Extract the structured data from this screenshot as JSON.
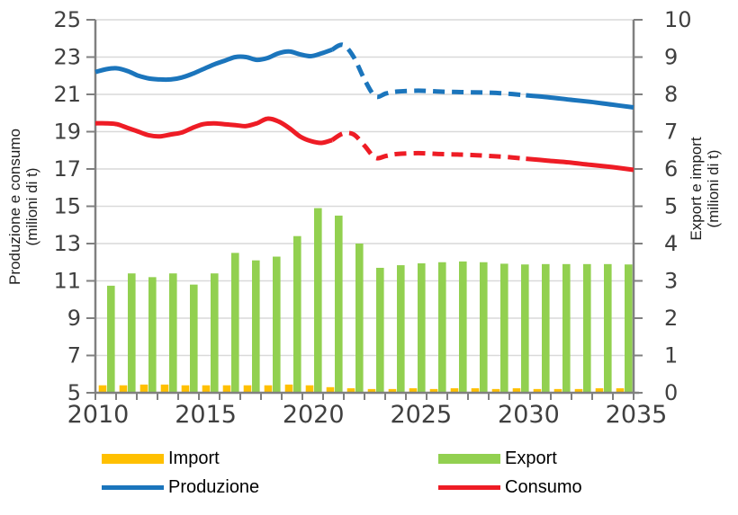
{
  "page": {
    "background": "#ffffff"
  },
  "colors": {
    "grid": "#d9d9d9",
    "axis": "#808080",
    "tick_text": "#404040",
    "title_text": "#1f1f1f",
    "import": "#FFC000",
    "export": "#92D050",
    "produzione": "#1B75BC",
    "consumo": "#EE1C25"
  },
  "legend": {
    "items": [
      {
        "label": "Import",
        "swatch": "bar",
        "color": "#FFC000"
      },
      {
        "label": "Produzione",
        "swatch": "line",
        "color": "#1B75BC"
      },
      {
        "label": "Export",
        "swatch": "bar",
        "color": "#92D050"
      },
      {
        "label": "Consumo",
        "swatch": "line",
        "color": "#EE1C25"
      }
    ]
  },
  "chart_data": {
    "type": "combo bar+line, dual axis",
    "x_years": [
      2010,
      2011,
      2012,
      2013,
      2014,
      2015,
      2016,
      2017,
      2018,
      2019,
      2020,
      2021,
      2022,
      2023,
      2024,
      2025,
      2026,
      2027,
      2028,
      2029,
      2030,
      2031,
      2032,
      2033,
      2034,
      2035
    ],
    "x_axis": {
      "tick_years": [
        2010,
        2015,
        2020,
        2025,
        2030,
        2035
      ],
      "xlim": [
        2010,
        2035
      ],
      "minor_ticks_every_year": true
    },
    "left_axis": {
      "title_line1": "Produzione e consumo",
      "title_line2": "(milioni di t)",
      "min": 5,
      "max": 25,
      "tick_labels": [
        25,
        23,
        21,
        19,
        17,
        15,
        13,
        11,
        9,
        7,
        5
      ],
      "grid": true
    },
    "right_axis": {
      "title_line1": "Export e import",
      "title_line2": "(milioni di t)",
      "min": 0,
      "max": 10,
      "tick_labels": [
        10,
        9,
        8,
        7,
        6,
        5,
        4,
        3,
        2,
        1,
        0
      ]
    },
    "bar_series": [
      {
        "name": "Import",
        "axis": "right",
        "color": "#FFC000",
        "values": [
          0.2,
          0.2,
          0.22,
          0.22,
          0.2,
          0.2,
          0.2,
          0.2,
          0.2,
          0.22,
          0.2,
          0.15,
          0.12,
          0.1,
          0.1,
          0.12,
          0.1,
          0.12,
          0.12,
          0.1,
          0.12,
          0.1,
          0.1,
          0.1,
          0.12,
          0.12
        ]
      },
      {
        "name": "Export",
        "axis": "right",
        "color": "#92D050",
        "values": [
          2.87,
          3.2,
          3.1,
          3.2,
          2.9,
          3.2,
          3.75,
          3.55,
          3.65,
          4.2,
          4.95,
          4.75,
          4.0,
          3.35,
          3.42,
          3.47,
          3.5,
          3.52,
          3.5,
          3.46,
          3.44,
          3.45,
          3.45,
          3.45,
          3.45,
          3.44
        ]
      }
    ],
    "line_series": [
      {
        "name": "Produzione",
        "axis": "left",
        "color": "#1B75BC",
        "segments": [
          {
            "from": 2010,
            "to": 2021,
            "dash": false
          },
          {
            "from": 2021,
            "to": 2030,
            "dash": true
          },
          {
            "from": 2030,
            "to": 2035,
            "dash": false
          }
        ],
        "points": [
          [
            2010,
            22.2
          ],
          [
            2010.5,
            22.35
          ],
          [
            2011,
            22.4
          ],
          [
            2011.5,
            22.25
          ],
          [
            2012,
            22.0
          ],
          [
            2012.5,
            21.85
          ],
          [
            2013,
            21.8
          ],
          [
            2013.5,
            21.8
          ],
          [
            2014,
            21.9
          ],
          [
            2014.5,
            22.1
          ],
          [
            2015,
            22.35
          ],
          [
            2015.5,
            22.6
          ],
          [
            2016,
            22.8
          ],
          [
            2016.5,
            23.0
          ],
          [
            2017,
            23.0
          ],
          [
            2017.5,
            22.85
          ],
          [
            2018,
            22.95
          ],
          [
            2018.5,
            23.2
          ],
          [
            2019,
            23.3
          ],
          [
            2019.5,
            23.15
          ],
          [
            2020,
            23.05
          ],
          [
            2020.5,
            23.2
          ],
          [
            2021,
            23.4
          ],
          [
            2021.5,
            23.65
          ],
          [
            2022,
            23.0
          ],
          [
            2022.5,
            21.8
          ],
          [
            2023,
            20.9
          ],
          [
            2023.5,
            21.05
          ],
          [
            2024,
            21.15
          ],
          [
            2025,
            21.2
          ],
          [
            2026,
            21.15
          ],
          [
            2027,
            21.12
          ],
          [
            2028,
            21.1
          ],
          [
            2029,
            21.05
          ],
          [
            2030,
            20.95
          ],
          [
            2031,
            20.85
          ],
          [
            2032,
            20.72
          ],
          [
            2033,
            20.6
          ],
          [
            2034,
            20.45
          ],
          [
            2035,
            20.3
          ]
        ]
      },
      {
        "name": "Consumo",
        "axis": "left",
        "color": "#EE1C25",
        "segments": [
          {
            "from": 2010,
            "to": 2021,
            "dash": false
          },
          {
            "from": 2021,
            "to": 2030,
            "dash": true
          },
          {
            "from": 2030,
            "to": 2035,
            "dash": false
          }
        ],
        "points": [
          [
            2010,
            19.45
          ],
          [
            2010.5,
            19.45
          ],
          [
            2011,
            19.4
          ],
          [
            2011.5,
            19.2
          ],
          [
            2012,
            19.0
          ],
          [
            2012.5,
            18.8
          ],
          [
            2013,
            18.75
          ],
          [
            2013.5,
            18.85
          ],
          [
            2014,
            18.95
          ],
          [
            2014.5,
            19.2
          ],
          [
            2015,
            19.4
          ],
          [
            2015.5,
            19.45
          ],
          [
            2016,
            19.4
          ],
          [
            2016.5,
            19.35
          ],
          [
            2017,
            19.3
          ],
          [
            2017.5,
            19.45
          ],
          [
            2018,
            19.7
          ],
          [
            2018.5,
            19.55
          ],
          [
            2019,
            19.2
          ],
          [
            2019.5,
            18.75
          ],
          [
            2020,
            18.5
          ],
          [
            2020.5,
            18.4
          ],
          [
            2021,
            18.55
          ],
          [
            2021.5,
            18.9
          ],
          [
            2022,
            18.85
          ],
          [
            2022.5,
            18.25
          ],
          [
            2023,
            17.6
          ],
          [
            2023.5,
            17.7
          ],
          [
            2024,
            17.8
          ],
          [
            2025,
            17.85
          ],
          [
            2026,
            17.8
          ],
          [
            2027,
            17.77
          ],
          [
            2028,
            17.72
          ],
          [
            2029,
            17.65
          ],
          [
            2030,
            17.55
          ],
          [
            2031,
            17.45
          ],
          [
            2032,
            17.35
          ],
          [
            2033,
            17.22
          ],
          [
            2034,
            17.1
          ],
          [
            2035,
            16.95
          ]
        ]
      }
    ]
  }
}
